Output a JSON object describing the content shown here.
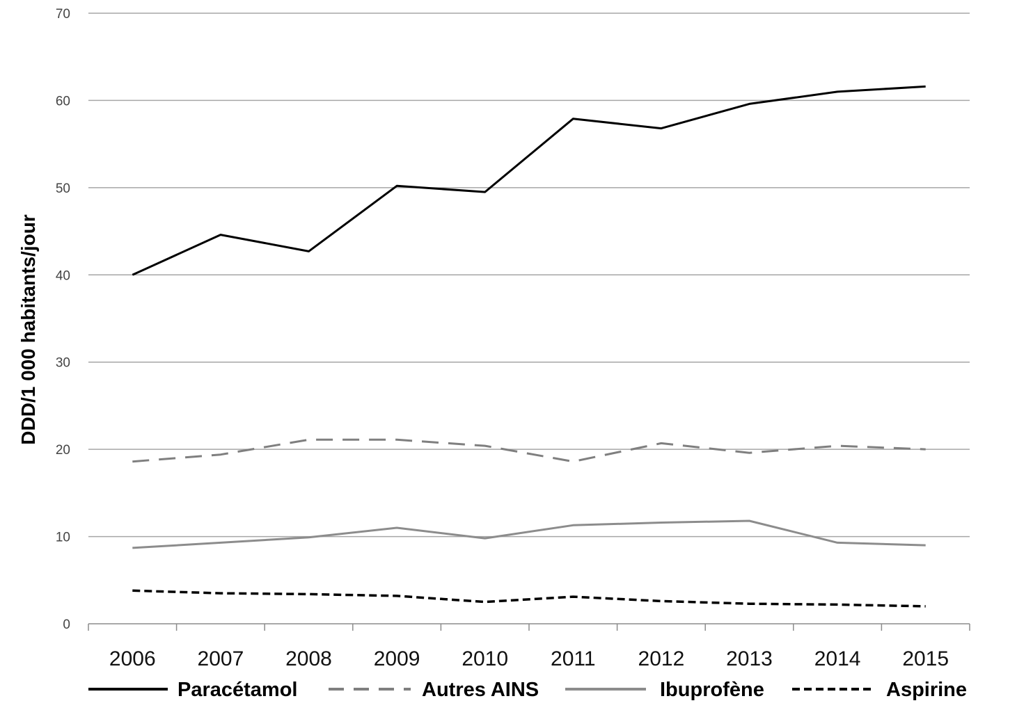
{
  "chart_data": {
    "type": "line",
    "title": "",
    "xlabel": "",
    "ylabel": "DDD/1 000 habitants/jour",
    "ylim": [
      0,
      70
    ],
    "yticks": [
      "0",
      "10",
      "20",
      "30",
      "40",
      "50",
      "60",
      "70"
    ],
    "grid": true,
    "legend_position": "bottom",
    "categories": [
      "2006",
      "2007",
      "2008",
      "2009",
      "2010",
      "2011",
      "2012",
      "2013",
      "2014",
      "2015"
    ],
    "series": [
      {
        "name": "Paracétamol",
        "color": "#000000",
        "dash": "solid",
        "values": [
          40.0,
          44.6,
          42.7,
          50.2,
          49.5,
          57.9,
          56.8,
          59.6,
          61.0,
          61.6
        ]
      },
      {
        "name": "Autres AINS",
        "color": "#7f7f7f",
        "dash": "long-dash",
        "values": [
          18.6,
          19.4,
          21.1,
          21.1,
          20.4,
          18.6,
          20.7,
          19.6,
          20.4,
          20.0
        ]
      },
      {
        "name": "Ibuprofène",
        "color": "#8c8c8c",
        "dash": "solid",
        "values": [
          8.7,
          9.3,
          9.9,
          11.0,
          9.8,
          11.3,
          11.6,
          11.8,
          9.3,
          9.0
        ]
      },
      {
        "name": "Aspirine",
        "color": "#000000",
        "dash": "short-dash",
        "values": [
          3.8,
          3.5,
          3.4,
          3.2,
          2.5,
          3.1,
          2.6,
          2.3,
          2.2,
          2.0
        ]
      }
    ]
  }
}
